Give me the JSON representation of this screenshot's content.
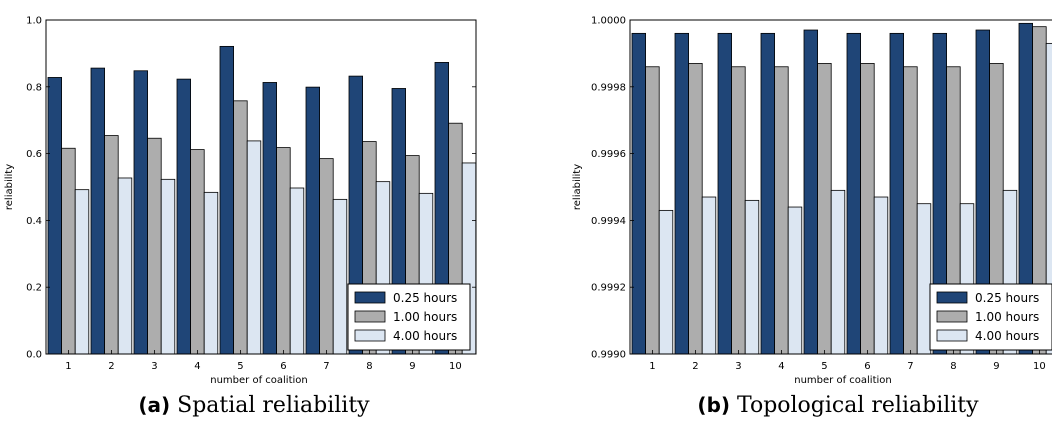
{
  "colors": {
    "s1": "#1f4577",
    "s2": "#adadad",
    "s3": "#dce6f2"
  },
  "chart_data": [
    {
      "type": "bar",
      "caption_tag": "(a)",
      "caption": "Spatial reliability",
      "xlabel": "number of coalition",
      "ylabel": "reliability",
      "categories": [
        "1",
        "2",
        "3",
        "4",
        "5",
        "6",
        "7",
        "8",
        "9",
        "10"
      ],
      "ylim": [
        0.0,
        1.0
      ],
      "yticks": [
        "0.0",
        "0.2",
        "0.4",
        "0.6",
        "0.8",
        "1.0"
      ],
      "legend_position": "lower-right",
      "series": [
        {
          "name": "0.25 hours",
          "values": [
            0.828,
            0.856,
            0.848,
            0.823,
            0.921,
            0.813,
            0.799,
            0.832,
            0.795,
            0.873
          ]
        },
        {
          "name": "1.00 hours",
          "values": [
            0.616,
            0.654,
            0.646,
            0.612,
            0.758,
            0.618,
            0.585,
            0.636,
            0.594,
            0.691
          ]
        },
        {
          "name": "4.00 hours",
          "values": [
            0.492,
            0.527,
            0.523,
            0.484,
            0.638,
            0.497,
            0.463,
            0.516,
            0.481,
            0.572
          ]
        }
      ]
    },
    {
      "type": "bar",
      "caption_tag": "(b)",
      "caption": "Topological reliability",
      "xlabel": "number of coalition",
      "ylabel": "reliability",
      "categories": [
        "1",
        "2",
        "3",
        "4",
        "5",
        "6",
        "7",
        "8",
        "9",
        "10"
      ],
      "ylim": [
        0.999,
        1.0
      ],
      "yticks": [
        "0.9990",
        "0.9992",
        "0.9994",
        "0.9996",
        "0.9998",
        "1.0000"
      ],
      "legend_position": "lower-right",
      "series": [
        {
          "name": "0.25 hours",
          "values": [
            0.99996,
            0.99996,
            0.99996,
            0.99996,
            0.99997,
            0.99996,
            0.99996,
            0.99996,
            0.99997,
            0.99999
          ]
        },
        {
          "name": "1.00 hours",
          "values": [
            0.99986,
            0.99987,
            0.99986,
            0.99986,
            0.99987,
            0.99987,
            0.99986,
            0.99986,
            0.99987,
            0.99998
          ]
        },
        {
          "name": "4.00 hours",
          "values": [
            0.99943,
            0.99947,
            0.99946,
            0.99944,
            0.99949,
            0.99947,
            0.99945,
            0.99945,
            0.99949,
            0.99993
          ]
        }
      ]
    }
  ]
}
